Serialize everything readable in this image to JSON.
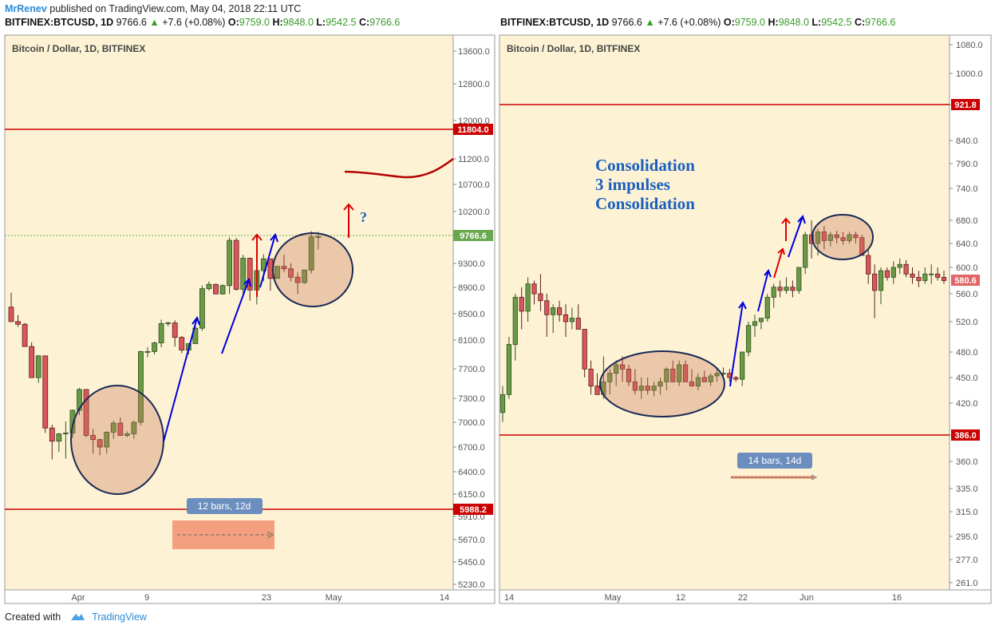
{
  "header": {
    "author": "MrRenev",
    "published": "published on TradingView.com, May 04, 2018 22:11 UTC"
  },
  "footer": {
    "created_with": "Created with",
    "brand": "TradingView"
  },
  "chart_data": [
    {
      "type": "candlestick",
      "symbol_line": {
        "symbol": "BITFINEX:BTCUSD, 1D",
        "last": "9766.6",
        "change": "+7.6 (+0.08%)",
        "o_label": "O:",
        "o": "9759.0",
        "h_label": "H:",
        "h": "9848.0",
        "l_label": "L:",
        "l": "9542.5",
        "c_label": "C:",
        "c": "9766.6"
      },
      "title": "Bitcoin / Dollar, 1D, BITFINEX",
      "y_ticks": [
        "13600.0",
        "12800.0",
        "12000.0",
        "11200.0",
        "10700.0",
        "10200.0",
        "9300.0",
        "8900.0",
        "8500.0",
        "8100.0",
        "7700.0",
        "7300.0",
        "7000.0",
        "6700.0",
        "6400.0",
        "6150.0",
        "5910.0",
        "5670.0",
        "5450.0",
        "5230.0"
      ],
      "x_ticks": [
        "Apr",
        "9",
        "23",
        "May",
        "14"
      ],
      "price_labels": [
        {
          "value": "11804.0",
          "color": "#cc0000"
        },
        {
          "value": "9766.6",
          "color": "#6aa84f"
        },
        {
          "value": "5988.2",
          "color": "#cc0000"
        }
      ],
      "horizontal_lines": [
        11804.0,
        5988.2
      ],
      "annotations": {
        "question": "?",
        "range_label": "12 bars, 12d"
      },
      "candles_ohlc": [
        [
          8600,
          8820,
          8420,
          8380
        ],
        [
          8380,
          8480,
          8300,
          8340
        ],
        [
          8340,
          8360,
          8010,
          8010
        ],
        [
          8010,
          8070,
          7580,
          7580
        ],
        [
          7580,
          7890,
          7510,
          7880
        ],
        [
          7880,
          7880,
          6870,
          6930
        ],
        [
          6930,
          6970,
          6550,
          6770
        ],
        [
          6770,
          6870,
          6640,
          6860
        ],
        [
          6860,
          7010,
          6560,
          6870
        ],
        [
          6870,
          7160,
          6810,
          7150
        ],
        [
          7150,
          7440,
          7090,
          7420
        ],
        [
          7420,
          7400,
          6820,
          6840
        ],
        [
          6840,
          6920,
          6620,
          6790
        ],
        [
          6790,
          6800,
          6600,
          6700
        ],
        [
          6700,
          6890,
          6620,
          6880
        ],
        [
          6880,
          7020,
          6800,
          6990
        ],
        [
          6990,
          7060,
          6840,
          6840
        ],
        [
          6840,
          6890,
          6820,
          6860
        ],
        [
          6860,
          7020,
          6800,
          7000
        ],
        [
          7000,
          7950,
          6960,
          7940
        ],
        [
          7940,
          8000,
          7860,
          7940
        ],
        [
          7940,
          8080,
          7900,
          8060
        ],
        [
          8060,
          8410,
          8000,
          8350
        ],
        [
          8350,
          8380,
          8310,
          8360
        ],
        [
          8360,
          8400,
          8010,
          8140
        ],
        [
          8140,
          8160,
          7920,
          7960
        ],
        [
          7960,
          8050,
          7900,
          8050
        ],
        [
          8050,
          8320,
          8050,
          8280
        ],
        [
          8280,
          8930,
          8240,
          8880
        ],
        [
          8880,
          9000,
          8850,
          8950
        ],
        [
          8950,
          8960,
          8800,
          8800
        ],
        [
          8800,
          8950,
          8790,
          8930
        ],
        [
          8930,
          9750,
          8800,
          9700
        ],
        [
          9700,
          9740,
          8850,
          8870
        ],
        [
          8870,
          9450,
          8750,
          9390
        ],
        [
          9390,
          9400,
          8700,
          8860
        ],
        [
          8860,
          9220,
          8640,
          9180
        ],
        [
          9180,
          9460,
          9000,
          9380
        ],
        [
          9380,
          9380,
          8850,
          9050
        ],
        [
          9050,
          9260,
          9050,
          9250
        ],
        [
          9250,
          9450,
          9150,
          9210
        ],
        [
          9210,
          9300,
          9000,
          9070
        ],
        [
          9070,
          9150,
          8800,
          8980
        ],
        [
          8980,
          9190,
          8960,
          9190
        ],
        [
          9190,
          9860,
          9130,
          9760
        ],
        [
          9760,
          9848,
          9542,
          9766
        ]
      ]
    },
    {
      "type": "candlestick",
      "symbol_line": {
        "symbol": "BITFINEX:BTCUSD, 1D",
        "last": "9766.6",
        "change": "+7.6 (+0.08%)",
        "o_label": "O:",
        "o": "9759.0",
        "h_label": "H:",
        "h": "9848.0",
        "l_label": "L:",
        "l": "9542.5",
        "c_label": "C:",
        "c": "9766.6"
      },
      "title": "Bitcoin / Dollar, 1D, BITFINEX",
      "y_ticks": [
        "1080.0",
        "1000.0",
        "921.8",
        "840.0",
        "790.0",
        "740.0",
        "680.0",
        "640.0",
        "600.0",
        "560.0",
        "520.0",
        "480.0",
        "450.0",
        "420.0",
        "386.0",
        "360.0",
        "335.0",
        "315.0",
        "295.0",
        "277.0",
        "261.0"
      ],
      "x_ticks": [
        "14",
        "May",
        "12",
        "22",
        "Jun",
        "16"
      ],
      "price_labels": [
        {
          "value": "921.8",
          "color": "#cc0000"
        },
        {
          "value": "580.6",
          "color": "#e06666"
        },
        {
          "value": "386.0",
          "color": "#cc0000"
        }
      ],
      "horizontal_lines": [
        921.8,
        386.0
      ],
      "annotations": {
        "text_lines": [
          "Consolidation",
          "3 impulses",
          "Consolidation"
        ],
        "range_label": "14 bars, 14d"
      },
      "candles_ohlc": [
        [
          410,
          440,
          400,
          430
        ],
        [
          430,
          500,
          425,
          490
        ],
        [
          490,
          560,
          470,
          555
        ],
        [
          555,
          570,
          510,
          535
        ],
        [
          535,
          585,
          520,
          575
        ],
        [
          575,
          580,
          545,
          560
        ],
        [
          560,
          590,
          535,
          550
        ],
        [
          550,
          560,
          500,
          530
        ],
        [
          530,
          545,
          505,
          540
        ],
        [
          540,
          550,
          520,
          530
        ],
        [
          530,
          545,
          500,
          520
        ],
        [
          520,
          540,
          510,
          525
        ],
        [
          525,
          545,
          515,
          510
        ],
        [
          510,
          510,
          450,
          460
        ],
        [
          460,
          470,
          430,
          440
        ],
        [
          440,
          455,
          430,
          430
        ],
        [
          430,
          475,
          425,
          445
        ],
        [
          445,
          460,
          430,
          455
        ],
        [
          455,
          470,
          440,
          465
        ],
        [
          465,
          475,
          445,
          460
        ],
        [
          460,
          465,
          440,
          445
        ],
        [
          445,
          460,
          430,
          435
        ],
        [
          435,
          450,
          425,
          440
        ],
        [
          440,
          450,
          430,
          435
        ],
        [
          435,
          445,
          428,
          440
        ],
        [
          440,
          450,
          430,
          445
        ],
        [
          445,
          462,
          435,
          460
        ],
        [
          460,
          470,
          445,
          445
        ],
        [
          445,
          470,
          440,
          465
        ],
        [
          465,
          470,
          445,
          445
        ],
        [
          445,
          460,
          440,
          440
        ],
        [
          440,
          455,
          435,
          450
        ],
        [
          450,
          458,
          445,
          445
        ],
        [
          445,
          455,
          440,
          452
        ],
        [
          452,
          460,
          445,
          455
        ],
        [
          455,
          462,
          448,
          455
        ],
        [
          455,
          460,
          445,
          450
        ],
        [
          450,
          452,
          445,
          448
        ],
        [
          448,
          480,
          440,
          480
        ],
        [
          480,
          520,
          475,
          515
        ],
        [
          515,
          530,
          500,
          520
        ],
        [
          520,
          525,
          510,
          525
        ],
        [
          525,
          560,
          520,
          555
        ],
        [
          555,
          575,
          540,
          570
        ],
        [
          570,
          580,
          555,
          565
        ],
        [
          565,
          585,
          560,
          570
        ],
        [
          570,
          580,
          555,
          565
        ],
        [
          565,
          600,
          560,
          600
        ],
        [
          600,
          660,
          590,
          655
        ],
        [
          655,
          680,
          615,
          640
        ],
        [
          640,
          665,
          620,
          660
        ],
        [
          660,
          670,
          630,
          645
        ],
        [
          645,
          660,
          635,
          655
        ],
        [
          655,
          662,
          640,
          650
        ],
        [
          650,
          660,
          638,
          645
        ],
        [
          645,
          660,
          640,
          655
        ],
        [
          655,
          660,
          640,
          650
        ],
        [
          650,
          655,
          630,
          620
        ],
        [
          620,
          630,
          575,
          590
        ],
        [
          590,
          605,
          525,
          565
        ],
        [
          565,
          600,
          545,
          595
        ],
        [
          595,
          600,
          580,
          585
        ],
        [
          585,
          610,
          575,
          600
        ],
        [
          600,
          615,
          590,
          605
        ],
        [
          605,
          612,
          585,
          590
        ],
        [
          590,
          600,
          575,
          585
        ],
        [
          585,
          595,
          570,
          580
        ],
        [
          580,
          600,
          575,
          590
        ],
        [
          590,
          605,
          575,
          590
        ],
        [
          590,
          600,
          580,
          585
        ],
        [
          585,
          595,
          575,
          580
        ]
      ]
    }
  ]
}
